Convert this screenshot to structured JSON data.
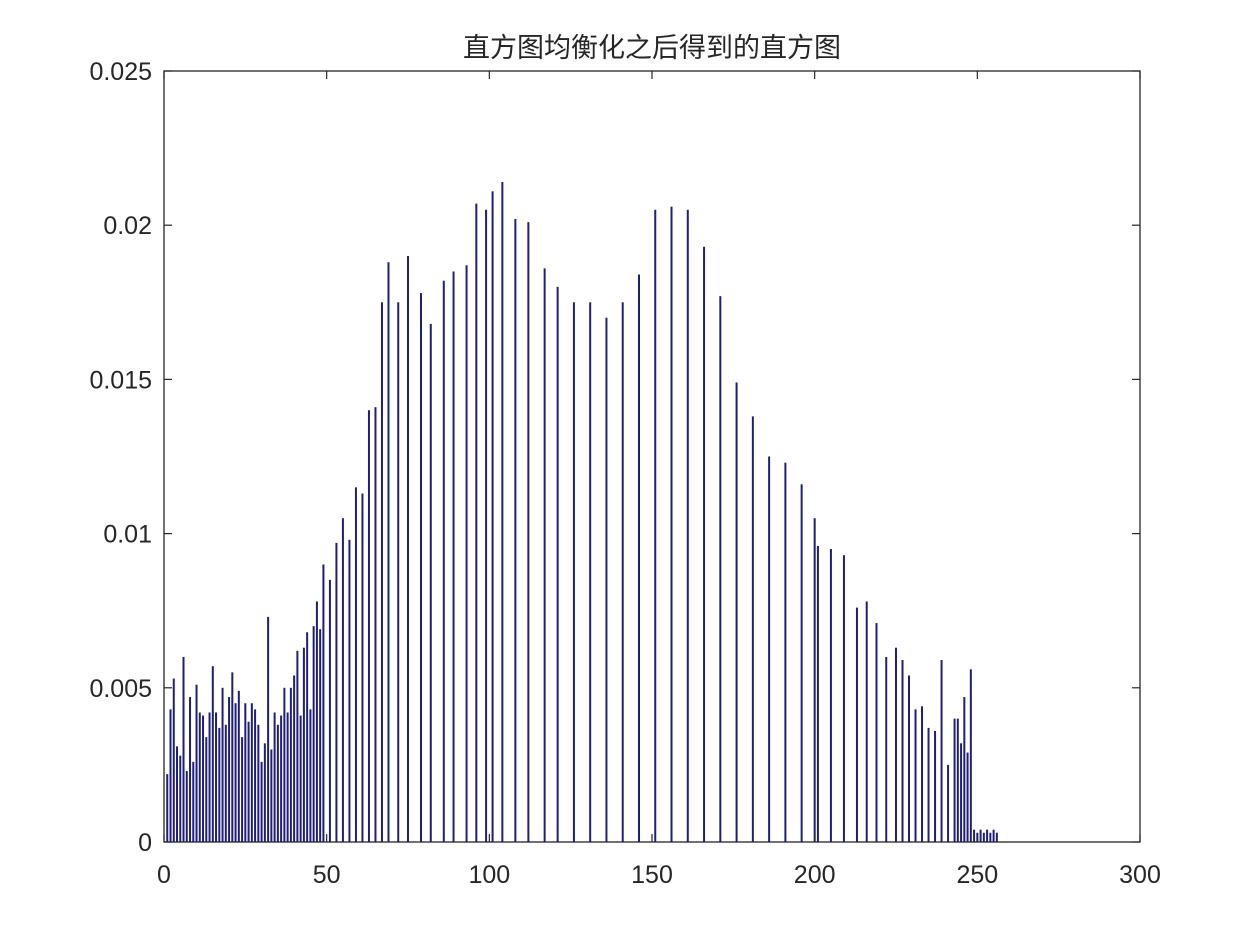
{
  "chart_data": {
    "type": "bar",
    "title": "直方图均衡化之后得到的直方图",
    "xlabel": "",
    "ylabel": "",
    "xlim": [
      0,
      300
    ],
    "ylim": [
      0,
      0.025
    ],
    "xticks": [
      0,
      50,
      100,
      150,
      200,
      250,
      300
    ],
    "xtick_labels": [
      "0",
      "50",
      "100",
      "150",
      "200",
      "250",
      "300"
    ],
    "yticks": [
      0,
      0.005,
      0.01,
      0.015,
      0.02,
      0.025
    ],
    "ytick_labels": [
      "0",
      "0.005",
      "0.01",
      "0.015",
      "0.02",
      "0.025"
    ],
    "grid": false,
    "bar_color": "#1f1f7a",
    "x": [
      1,
      2,
      3,
      4,
      5,
      6,
      7,
      8,
      9,
      10,
      11,
      12,
      13,
      14,
      15,
      16,
      17,
      18,
      19,
      20,
      21,
      22,
      23,
      24,
      25,
      26,
      27,
      28,
      29,
      30,
      31,
      32,
      33,
      34,
      35,
      36,
      37,
      38,
      39,
      40,
      41,
      42,
      43,
      44,
      45,
      46,
      47,
      48,
      49,
      51,
      53,
      55,
      57,
      59,
      61,
      63,
      65,
      67,
      69,
      72,
      75,
      79,
      82,
      86,
      89,
      93,
      96,
      99,
      101,
      104,
      108,
      112,
      117,
      121,
      126,
      131,
      136,
      141,
      146,
      151,
      156,
      161,
      166,
      171,
      176,
      181,
      186,
      191,
      196,
      200,
      201,
      205,
      209,
      213,
      216,
      219,
      222,
      225,
      227,
      229,
      231,
      233,
      235,
      237,
      239,
      241,
      243,
      244,
      245,
      246,
      247,
      248,
      249,
      250,
      251,
      252,
      253,
      254,
      255,
      256
    ],
    "values": [
      0.0022,
      0.0043,
      0.0053,
      0.0031,
      0.0028,
      0.006,
      0.0023,
      0.0047,
      0.0026,
      0.0051,
      0.0042,
      0.0041,
      0.0034,
      0.0042,
      0.0057,
      0.0042,
      0.0037,
      0.005,
      0.0038,
      0.0047,
      0.0055,
      0.0045,
      0.0049,
      0.0034,
      0.0045,
      0.0039,
      0.0045,
      0.0043,
      0.0038,
      0.0026,
      0.0032,
      0.0073,
      0.003,
      0.0042,
      0.0038,
      0.0041,
      0.005,
      0.0042,
      0.005,
      0.0054,
      0.0062,
      0.0041,
      0.0063,
      0.0068,
      0.0043,
      0.007,
      0.0078,
      0.0069,
      0.009,
      0.0085,
      0.0097,
      0.0105,
      0.0098,
      0.0115,
      0.0113,
      0.014,
      0.0141,
      0.0175,
      0.0188,
      0.0175,
      0.019,
      0.0178,
      0.0168,
      0.0182,
      0.0185,
      0.0187,
      0.0207,
      0.0205,
      0.0211,
      0.0214,
      0.0202,
      0.0201,
      0.0186,
      0.018,
      0.0175,
      0.0175,
      0.017,
      0.0175,
      0.0184,
      0.0205,
      0.0206,
      0.0205,
      0.0193,
      0.0177,
      0.0149,
      0.0138,
      0.0125,
      0.0123,
      0.0116,
      0.0105,
      0.0096,
      0.0095,
      0.0093,
      0.0076,
      0.0078,
      0.0071,
      0.006,
      0.0063,
      0.0059,
      0.0054,
      0.0043,
      0.0044,
      0.0037,
      0.0036,
      0.0059,
      0.0025,
      0.004,
      0.004,
      0.0032,
      0.0047,
      0.0029,
      0.0056,
      0.0004,
      0.0003,
      0.0004,
      0.0003,
      0.0004,
      0.0003,
      0.0004,
      0.0003
    ]
  }
}
